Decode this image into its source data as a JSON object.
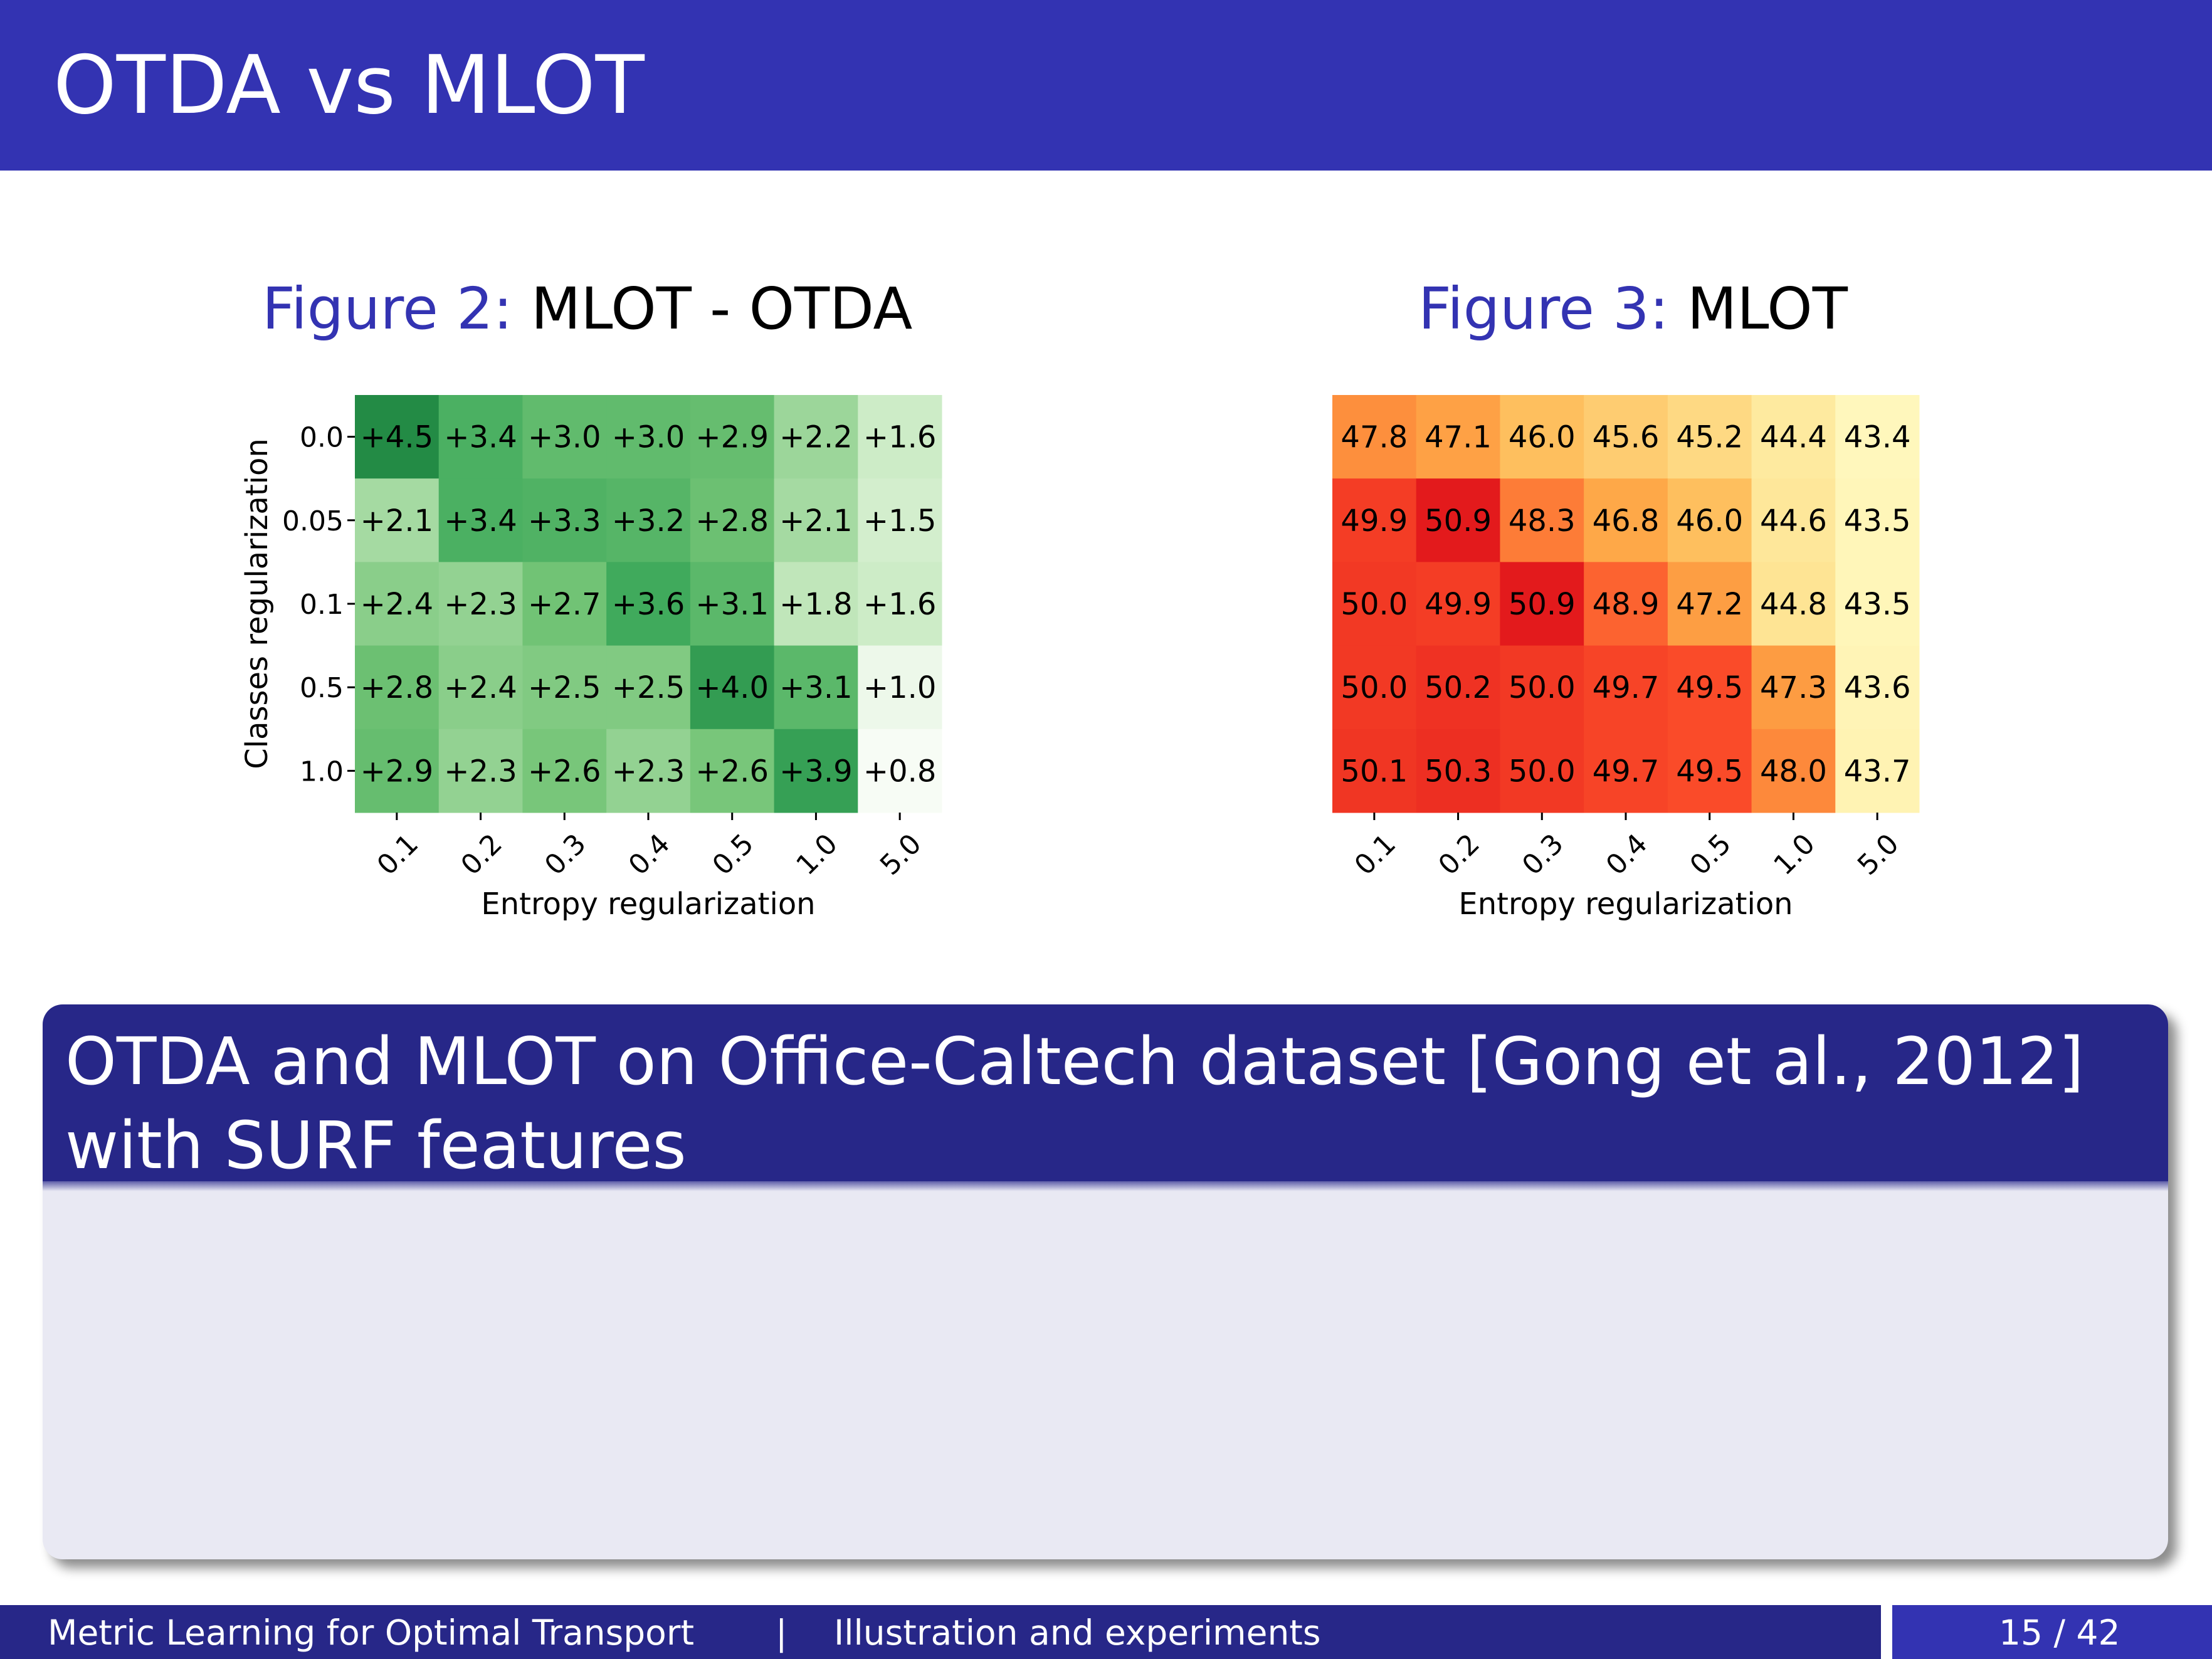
{
  "slide": {
    "title": "OTDA vs MLOT"
  },
  "figures": [
    {
      "label": "Figure 2:",
      "text": "MLOT - OTDA"
    },
    {
      "label": "Figure 3:",
      "text": "MLOT"
    }
  ],
  "chart_data": [
    {
      "type": "heatmap",
      "title": "",
      "xlabel": "Entropy regularization",
      "ylabel": "Classes regularization",
      "x_categories": [
        "0.1",
        "0.2",
        "0.3",
        "0.4",
        "0.5",
        "1.0",
        "5.0"
      ],
      "y_categories": [
        "0.0",
        "0.05",
        "0.1",
        "0.5",
        "1.0"
      ],
      "values": [
        [
          4.5,
          3.4,
          3.0,
          3.0,
          2.9,
          2.2,
          1.6
        ],
        [
          2.1,
          3.4,
          3.3,
          3.2,
          2.8,
          2.1,
          1.5
        ],
        [
          2.4,
          2.3,
          2.7,
          3.6,
          3.1,
          1.8,
          1.6
        ],
        [
          2.8,
          2.4,
          2.5,
          2.5,
          4.0,
          3.1,
          1.0
        ],
        [
          2.9,
          2.3,
          2.6,
          2.3,
          2.6,
          3.9,
          0.8
        ]
      ],
      "cell_labels": [
        [
          "+4.5",
          "+3.4",
          "+3.0",
          "+3.0",
          "+2.9",
          "+2.2",
          "+1.6"
        ],
        [
          "+2.1",
          "+3.4",
          "+3.3",
          "+3.2",
          "+2.8",
          "+2.1",
          "+1.5"
        ],
        [
          "+2.4",
          "+2.3",
          "+2.7",
          "+3.6",
          "+3.1",
          "+1.8",
          "+1.6"
        ],
        [
          "+2.8",
          "+2.4",
          "+2.5",
          "+2.5",
          "+4.0",
          "+3.1",
          "+1.0"
        ],
        [
          "+2.9",
          "+2.3",
          "+2.6",
          "+2.3",
          "+2.6",
          "+3.9",
          "+0.8"
        ]
      ],
      "colormap": "Greens",
      "color_light": "#f7fcf5",
      "color_dark": "#238b45"
    },
    {
      "type": "heatmap",
      "title": "",
      "xlabel": "Entropy regularization",
      "ylabel": "",
      "x_categories": [
        "0.1",
        "0.2",
        "0.3",
        "0.4",
        "0.5",
        "1.0",
        "5.0"
      ],
      "y_categories": [],
      "values": [
        [
          47.8,
          47.1,
          46.0,
          45.6,
          45.2,
          44.4,
          43.4
        ],
        [
          49.9,
          50.9,
          48.3,
          46.8,
          46.0,
          44.6,
          43.5
        ],
        [
          50.0,
          49.9,
          50.9,
          48.9,
          47.2,
          44.8,
          43.5
        ],
        [
          50.0,
          50.2,
          50.0,
          49.7,
          49.5,
          47.3,
          43.6
        ],
        [
          50.1,
          50.3,
          50.0,
          49.7,
          49.5,
          48.0,
          43.7
        ]
      ],
      "cell_labels": [
        [
          "47.8",
          "47.1",
          "46.0",
          "45.6",
          "45.2",
          "44.4",
          "43.4"
        ],
        [
          "49.9",
          "50.9",
          "48.3",
          "46.8",
          "46.0",
          "44.6",
          "43.5"
        ],
        [
          "50.0",
          "49.9",
          "50.9",
          "48.9",
          "47.2",
          "44.8",
          "43.5"
        ],
        [
          "50.0",
          "50.2",
          "50.0",
          "49.7",
          "49.5",
          "47.3",
          "43.6"
        ],
        [
          "50.1",
          "50.3",
          "50.0",
          "49.7",
          "49.5",
          "48.0",
          "43.7"
        ]
      ],
      "colormap": "YlOrRd",
      "color_stops": [
        "#fff7bc",
        "#fee391",
        "#feb24c",
        "#fd8d3c",
        "#fc4e2a",
        "#e31a1c"
      ]
    }
  ],
  "block": {
    "title": "OTDA and MLOT on Office-Caltech dataset [Gong et al., 2012] with SURF features"
  },
  "footer": {
    "title": "Metric Learning for Optimal Transport",
    "separator": "|",
    "section": "Illustration and experiments",
    "page": "15 / 42"
  },
  "colors": {
    "theme_blue": "#3333b2",
    "theme_dark_blue": "#272788",
    "block_body": "#e9e9f3"
  }
}
